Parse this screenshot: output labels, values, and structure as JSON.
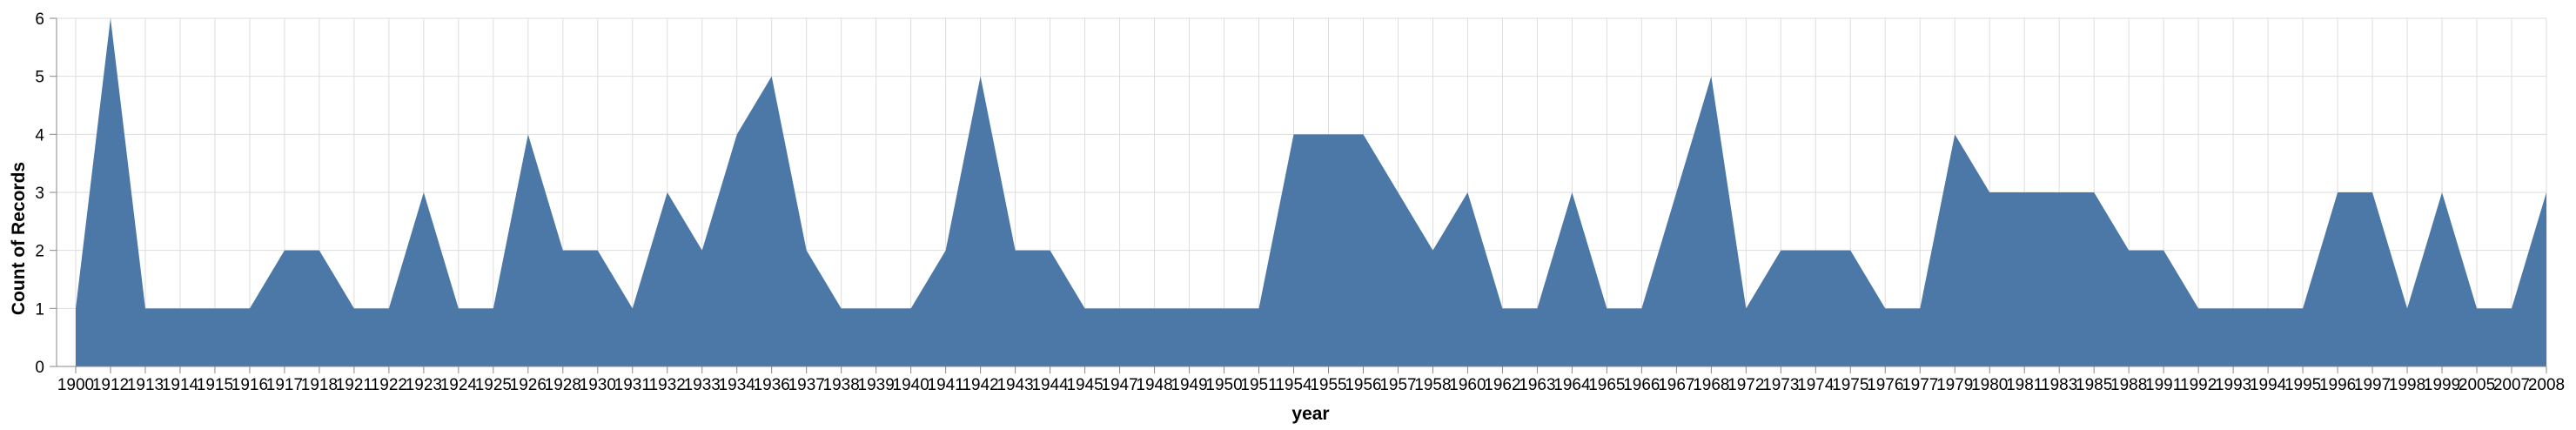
{
  "chart_data": {
    "type": "area",
    "title": "",
    "xlabel": "year",
    "ylabel": "Count of Records",
    "ylim": [
      0,
      6
    ],
    "yticks": [
      0,
      1,
      2,
      3,
      4,
      5,
      6
    ],
    "grid": true,
    "legend": "none",
    "colors": {
      "area": "#4c78a8",
      "grid": "#dddddd",
      "axis": "#888888"
    },
    "x": [
      "1900",
      "1912",
      "1913",
      "1914",
      "1915",
      "1916",
      "1917",
      "1918",
      "1921",
      "1922",
      "1923",
      "1924",
      "1925",
      "1926",
      "1928",
      "1930",
      "1931",
      "1932",
      "1933",
      "1934",
      "1936",
      "1937",
      "1938",
      "1939",
      "1940",
      "1941",
      "1942",
      "1943",
      "1944",
      "1945",
      "1947",
      "1948",
      "1949",
      "1950",
      "1951",
      "1954",
      "1955",
      "1956",
      "1957",
      "1958",
      "1960",
      "1962",
      "1963",
      "1964",
      "1965",
      "1966",
      "1967",
      "1968",
      "1972",
      "1973",
      "1974",
      "1975",
      "1976",
      "1977",
      "1979",
      "1980",
      "1981",
      "1983",
      "1985",
      "1988",
      "1991",
      "1992",
      "1993",
      "1994",
      "1995",
      "1996",
      "1997",
      "1998",
      "1999",
      "2005",
      "2007",
      "2008"
    ],
    "values": [
      1,
      6,
      1,
      1,
      1,
      1,
      2,
      2,
      1,
      1,
      3,
      1,
      1,
      4,
      2,
      2,
      1,
      3,
      2,
      4,
      5,
      2,
      1,
      1,
      1,
      2,
      5,
      2,
      2,
      1,
      1,
      1,
      1,
      1,
      1,
      4,
      4,
      4,
      3,
      2,
      3,
      1,
      1,
      3,
      1,
      1,
      3,
      5,
      1,
      2,
      2,
      2,
      1,
      1,
      4,
      3,
      3,
      3,
      3,
      2,
      2,
      1,
      1,
      1,
      1,
      3,
      3,
      1,
      3,
      1,
      1,
      3
    ]
  }
}
